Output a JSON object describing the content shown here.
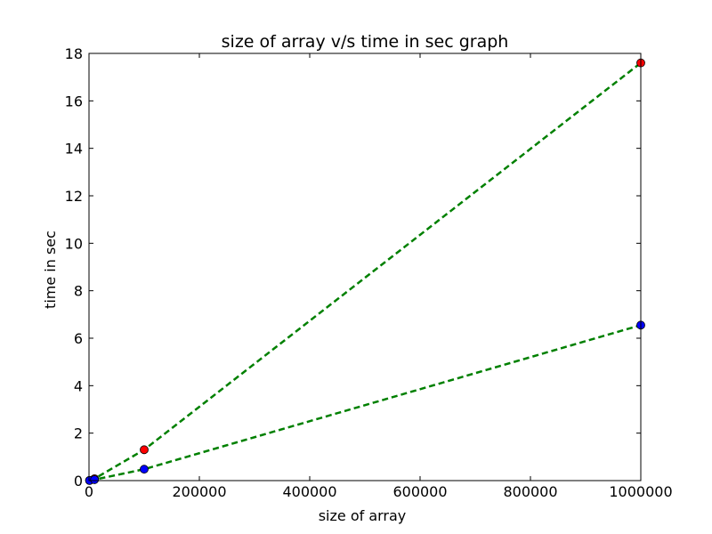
{
  "chart_data": {
    "type": "line",
    "title": "size of array v/s time in sec graph",
    "xlabel": "size of array",
    "ylabel": "time in sec",
    "xlim": [
      0,
      1000000
    ],
    "ylim": [
      0,
      18
    ],
    "xticks": [
      "0",
      "200000",
      "400000",
      "600000",
      "800000",
      "1000000"
    ],
    "yticks": [
      "0",
      "2",
      "4",
      "6",
      "8",
      "10",
      "12",
      "14",
      "16",
      "18"
    ],
    "grid": false,
    "legend": "none",
    "series": [
      {
        "x": [
          1000,
          10000,
          100000,
          1000000
        ],
        "y": [
          0.01,
          0.08,
          1.3,
          17.6
        ],
        "line_color": "#008000",
        "line_style": "dashed",
        "marker_color": "#ff0000"
      },
      {
        "x": [
          1000,
          10000,
          100000,
          1000000
        ],
        "y": [
          0.005,
          0.04,
          0.48,
          6.55
        ],
        "line_color": "#008000",
        "line_style": "dashed",
        "marker_color": "#0000ff"
      }
    ]
  }
}
